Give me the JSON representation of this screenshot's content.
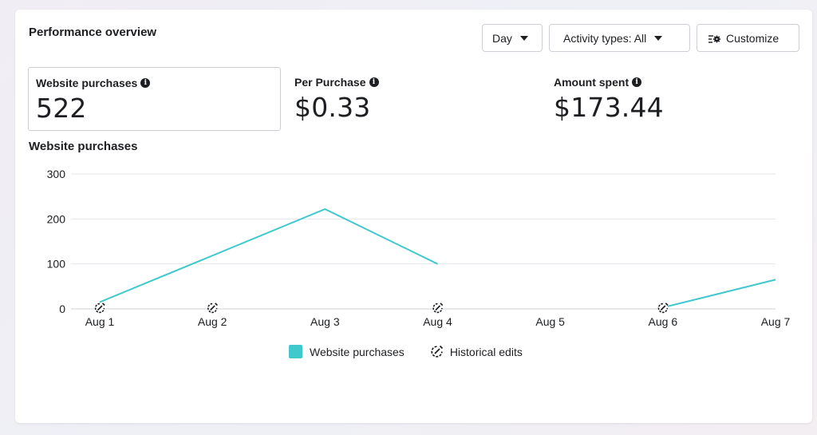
{
  "header": {
    "title": "Performance overview",
    "day_button": "Day",
    "activity_button": "Activity types: All",
    "customize_button": "Customize"
  },
  "metrics": [
    {
      "label": "Website purchases",
      "value": "522",
      "selected": true
    },
    {
      "label": "Per Purchase",
      "value": "$0.33",
      "selected": false
    },
    {
      "label": "Amount spent",
      "value": "$173.44",
      "selected": false
    }
  ],
  "chart_section_title": "Website purchases",
  "legend": {
    "series": "Website purchases",
    "edits": "Historical edits"
  },
  "colors": {
    "series_line": "#3fc9cc",
    "gridline": "#e4e6eb",
    "text": "#1c1e21"
  },
  "chart_data": {
    "type": "line",
    "title": "",
    "xlabel": "",
    "ylabel": "",
    "categories": [
      "Aug 1",
      "Aug 2",
      "Aug 3",
      "Aug 4",
      "Aug 5",
      "Aug 6",
      "Aug 7"
    ],
    "ylim": [
      0,
      300
    ],
    "yticks": [
      0,
      100,
      200,
      300
    ],
    "grid": true,
    "legend_position": "bottom",
    "series": [
      {
        "name": "Website purchases",
        "values": [
          15,
          null,
          222,
          100,
          null,
          3,
          65
        ]
      }
    ],
    "line_segments": [
      [
        0,
        2,
        3
      ],
      [
        5,
        6
      ]
    ],
    "historical_edits": [
      "Aug 1",
      "Aug 2",
      "Aug 4",
      "Aug 6"
    ]
  }
}
